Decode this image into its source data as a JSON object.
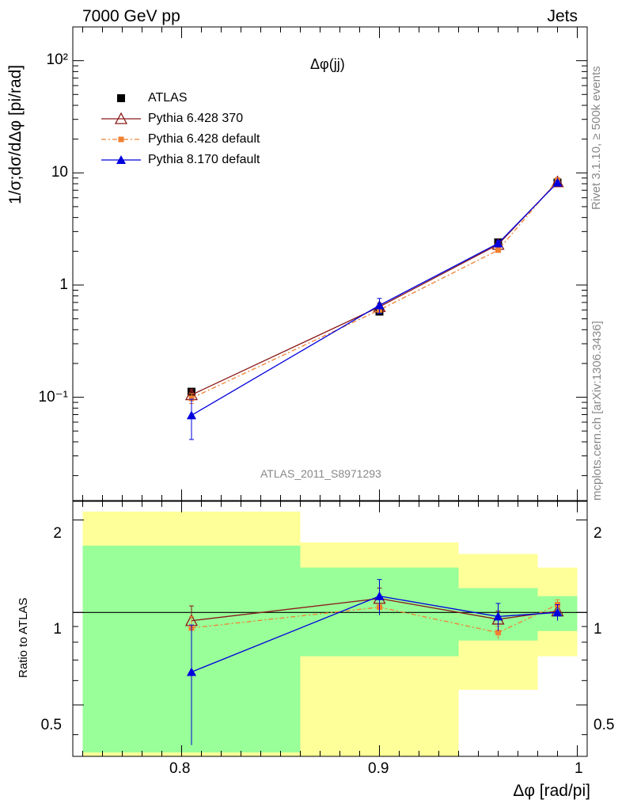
{
  "header": {
    "energy_label": "7000 GeV pp",
    "category_label": "Jets"
  },
  "side_text": {
    "rivet": "Rivet 3.1.10, ≥ 500k events",
    "mcplots": "mcplots.cern.ch [arXiv:1306.3436]"
  },
  "main_panel": {
    "observable": "Δφ(jj)",
    "ylabel": "1/σ;dσ/dΔφ [pi/rad]",
    "analysis_id": "ATLAS_2011_S8971293",
    "yticks": [
      "10⁻¹",
      "1",
      "10",
      "10²"
    ]
  },
  "ratio_panel": {
    "ylabel": "Ratio to ATLAS",
    "yticks": [
      "0.5",
      "1",
      "2"
    ]
  },
  "x_axis": {
    "label": "Δφ [rad/pi]",
    "ticks": [
      "0.8",
      "0.9",
      "1"
    ]
  },
  "colors": {
    "atlas": "#000000",
    "p6_370": "#8b1a1a",
    "p6_default": "#f08030",
    "p8": "#0000dd",
    "band_green": "#99ff99",
    "band_yellow": "#ffff99"
  },
  "chart_data": {
    "type": "scatter",
    "x_range": [
      0.745,
      1.005
    ],
    "y_scale": "log",
    "y_range": [
      0.012,
      200
    ],
    "ratio_range": [
      0.34,
      2.3
    ],
    "x": [
      0.805,
      0.9,
      0.96,
      0.99
    ],
    "bins": [
      [
        0.75,
        0.86
      ],
      [
        0.86,
        0.94
      ],
      [
        0.94,
        0.98
      ],
      [
        0.98,
        1.0
      ]
    ],
    "legend_position": "top-left",
    "series": [
      {
        "name": "ATLAS",
        "values": [
          0.112,
          0.58,
          2.4,
          8.2
        ],
        "ratio": [
          1.0,
          1.0,
          1.0,
          1.0
        ],
        "ratio_band_inner": [
          [
            0.35,
            1.65
          ],
          [
            0.72,
            1.4
          ],
          [
            0.81,
            1.2
          ],
          [
            0.87,
            1.13
          ]
        ],
        "ratio_band_outer": [
          [
            0.34,
            2.13
          ],
          [
            0.34,
            1.69
          ],
          [
            0.56,
            1.55
          ],
          [
            0.72,
            1.4
          ]
        ]
      },
      {
        "name": "Pythia 6.428 370",
        "values": [
          0.105,
          0.64,
          2.3,
          8.3
        ],
        "errors": [
          0.012,
          0.05,
          0.12,
          0.25
        ],
        "ratio": [
          0.94,
          1.11,
          0.95,
          1.01
        ],
        "ratio_errors": [
          0.11,
          0.09,
          0.06,
          0.05
        ]
      },
      {
        "name": "Pythia 6.428 default",
        "values": [
          0.098,
          0.6,
          2.05,
          8.6
        ],
        "errors": [
          0.01,
          0.04,
          0.08,
          0.3
        ],
        "ratio": [
          0.89,
          1.04,
          0.86,
          1.06
        ],
        "ratio_errors": [
          0.08,
          0.06,
          0.04,
          0.04
        ]
      },
      {
        "name": "Pythia 8.170 default",
        "values": [
          0.069,
          0.66,
          2.35,
          8.2
        ],
        "errors": [
          0.027,
          0.1,
          0.14,
          0.3
        ],
        "ratio": [
          0.64,
          1.13,
          0.97,
          1.0
        ],
        "ratio_errors": [
          0.27,
          0.15,
          0.1,
          0.06
        ]
      }
    ]
  }
}
